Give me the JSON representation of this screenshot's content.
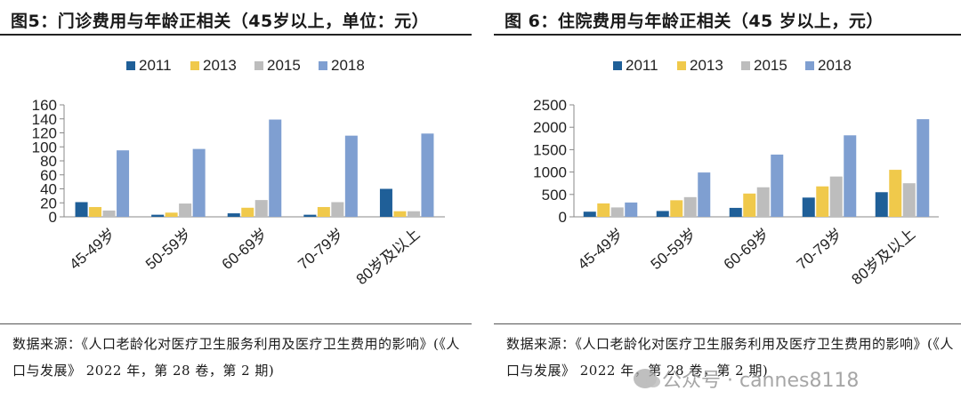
{
  "colors": {
    "2011": "#1f5f98",
    "2013": "#f0c94b",
    "2015": "#bdbdbd",
    "2018": "#7f9fd1"
  },
  "watermark": {
    "text": "公众号 · cannes8118",
    "icon": "wechat-icon"
  },
  "chart_data": [
    {
      "type": "bar",
      "title": "图5：门诊费用与年龄正相关（45岁以上，单位：元）",
      "categories": [
        "45-49岁",
        "50-59岁",
        "60-69岁",
        "70-79岁",
        "80岁及以上"
      ],
      "series": [
        {
          "name": "2011",
          "values": [
            21,
            3,
            5,
            3,
            40
          ]
        },
        {
          "name": "2013",
          "values": [
            14,
            6,
            13,
            14,
            8
          ]
        },
        {
          "name": "2015",
          "values": [
            9,
            19,
            24,
            21,
            8
          ]
        },
        {
          "name": "2018",
          "values": [
            95,
            97,
            139,
            116,
            119
          ]
        }
      ],
      "ylim": [
        0,
        160
      ],
      "yticks": [
        "0",
        "20",
        "40",
        "60",
        "80",
        "100",
        "120",
        "140",
        "160"
      ],
      "grid": false,
      "legend": "top",
      "source": "数据来源：《人口老龄化对医疗卫生服务利用及医疗卫生费用的影响》(《人口与发展》 2022 年，第 28 卷，第 2 期)"
    },
    {
      "type": "bar",
      "title": "图 6：住院费用与年龄正相关（45 岁以上，元）",
      "categories": [
        "45-49岁",
        "50-59岁",
        "60-69岁",
        "70-79岁",
        "80岁及以上"
      ],
      "series": [
        {
          "name": "2011",
          "values": [
            115,
            130,
            200,
            430,
            550
          ]
        },
        {
          "name": "2013",
          "values": [
            300,
            370,
            520,
            680,
            1050
          ]
        },
        {
          "name": "2015",
          "values": [
            210,
            440,
            660,
            900,
            750
          ]
        },
        {
          "name": "2018",
          "values": [
            320,
            990,
            1390,
            1820,
            2180
          ]
        }
      ],
      "ylim": [
        0,
        2500
      ],
      "yticks": [
        "0",
        "500",
        "1000",
        "1500",
        "2000",
        "2500"
      ],
      "grid": false,
      "legend": "top",
      "source": "数据来源：《人口老龄化对医疗卫生服务利用及医疗卫生费用的影响》(《人口与发展》 2022 年，第 28 卷，第 2 期)"
    }
  ]
}
